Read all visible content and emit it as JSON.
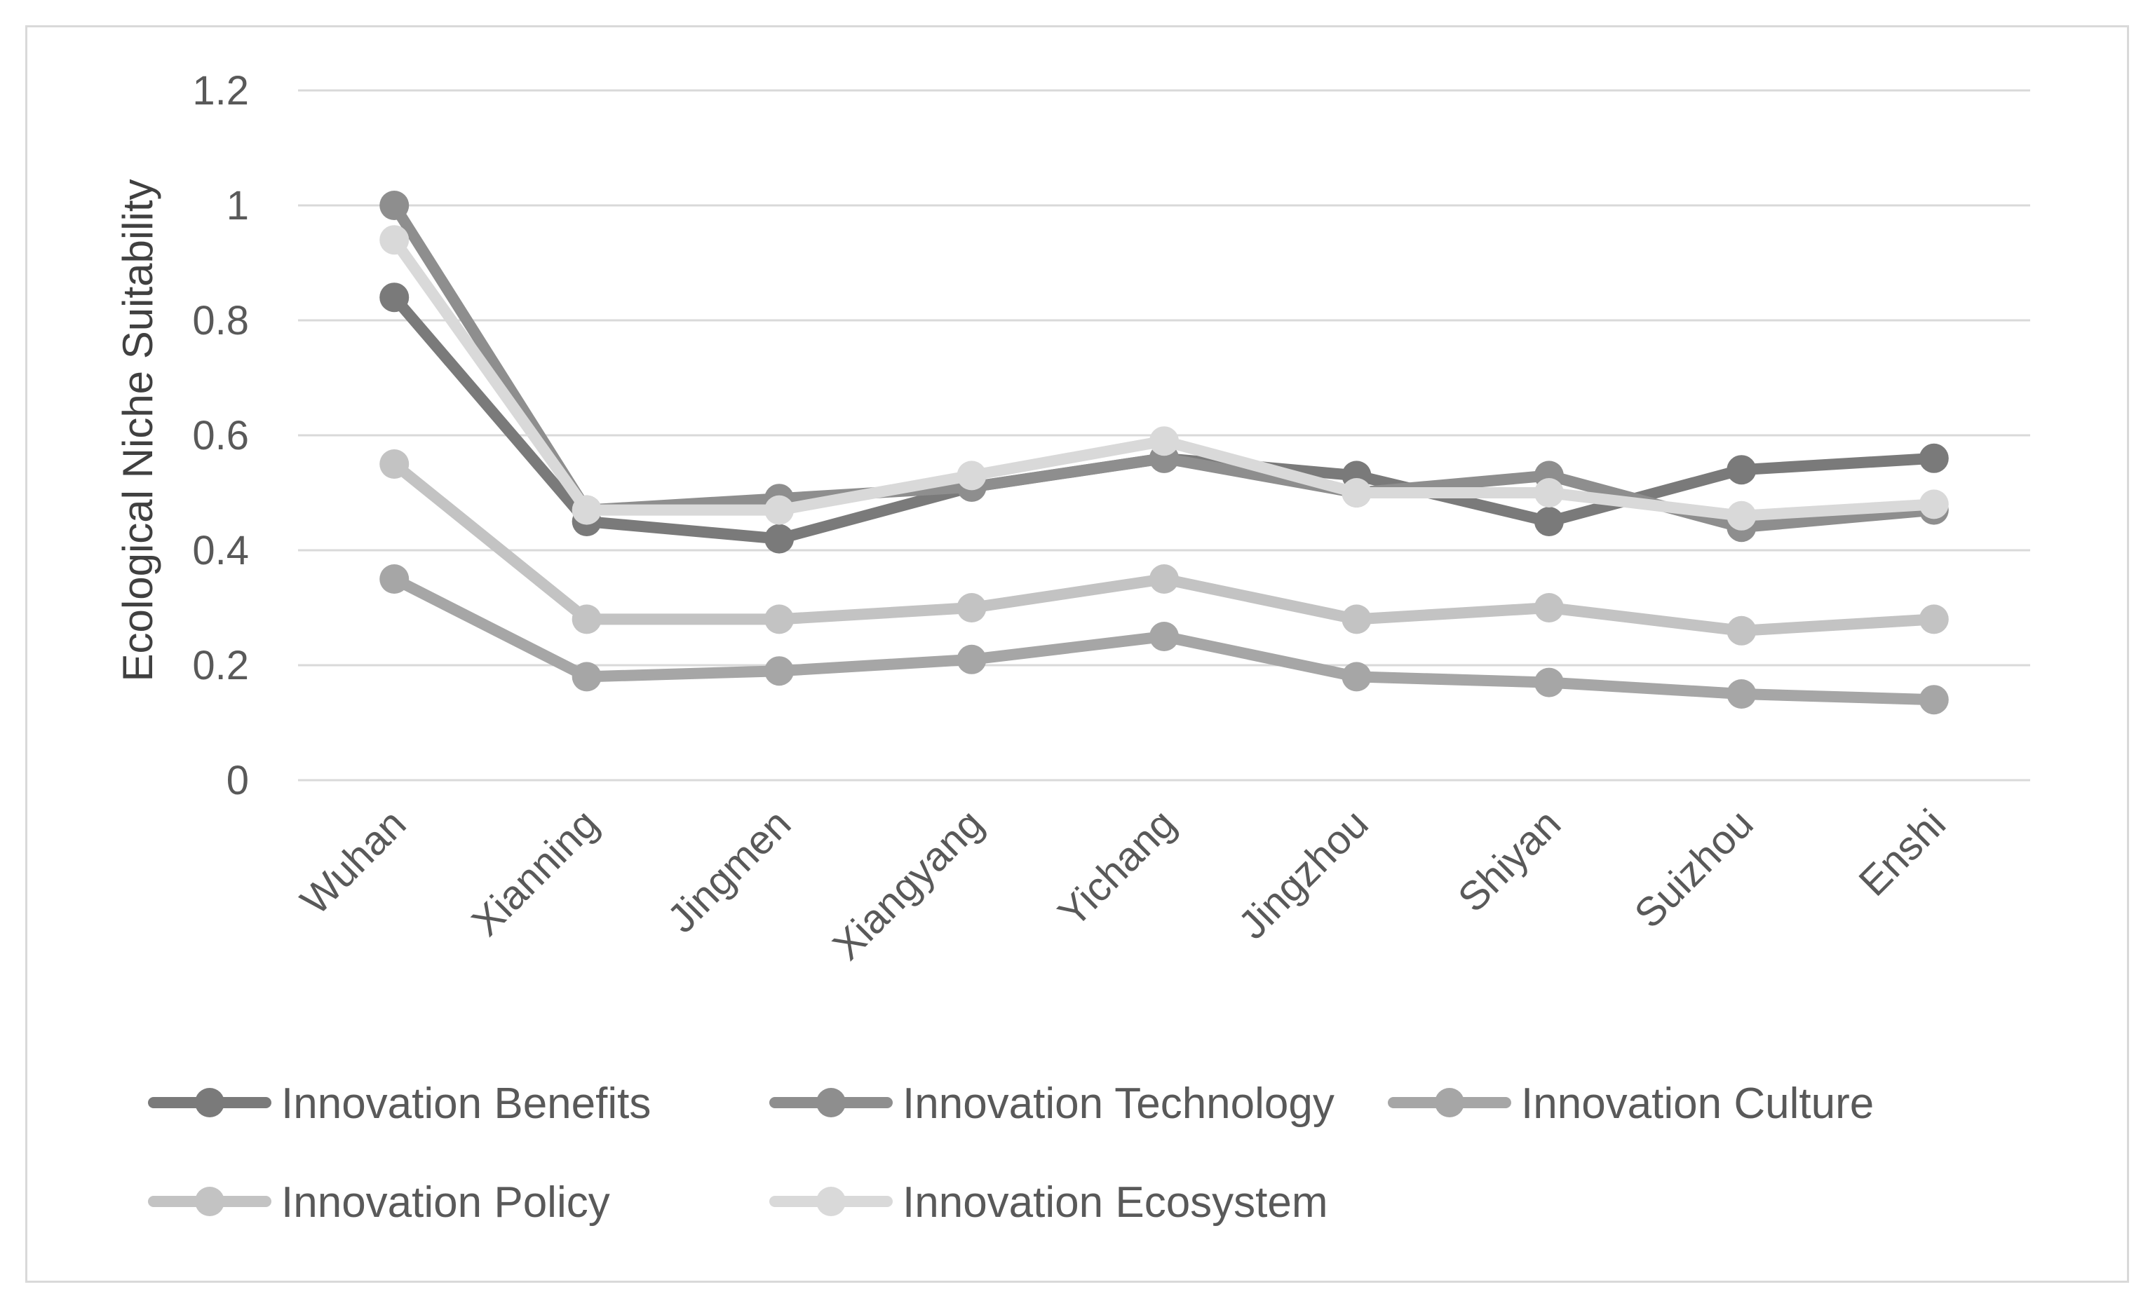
{
  "chart_data": {
    "type": "line",
    "title": "",
    "xlabel": "",
    "ylabel": "Ecological Niche Suitability",
    "ylim": [
      0,
      1.2
    ],
    "yticks": [
      "0",
      "0.2",
      "0.4",
      "0.6",
      "0.8",
      "1",
      "1.2"
    ],
    "grid": true,
    "legend_position": "bottom",
    "categories": [
      "Wuhan",
      "Xianning",
      "Jingmen",
      "Xiangyang",
      "Yichang",
      "Jingzhou",
      "Shiyan",
      "Suizhou",
      "Enshi"
    ],
    "series": [
      {
        "name": "Innovation Benefits",
        "color": "#7a7a7a",
        "values": [
          0.84,
          0.45,
          0.42,
          0.51,
          0.56,
          0.53,
          0.45,
          0.54,
          0.56
        ]
      },
      {
        "name": "Innovation Technology",
        "color": "#8e8e8e",
        "values": [
          1.0,
          0.47,
          0.49,
          0.51,
          0.56,
          0.5,
          0.53,
          0.44,
          0.47
        ]
      },
      {
        "name": "Innovation Culture",
        "color": "#a6a6a6",
        "values": [
          0.35,
          0.18,
          0.19,
          0.21,
          0.25,
          0.18,
          0.17,
          0.15,
          0.14
        ]
      },
      {
        "name": "Innovation Policy",
        "color": "#c3c3c3",
        "values": [
          0.55,
          0.28,
          0.28,
          0.3,
          0.35,
          0.28,
          0.3,
          0.26,
          0.28
        ]
      },
      {
        "name": "Innovation Ecosystem",
        "color": "#d9d9d9",
        "values": [
          0.94,
          0.47,
          0.47,
          0.53,
          0.59,
          0.5,
          0.5,
          0.46,
          0.48
        ]
      }
    ]
  }
}
